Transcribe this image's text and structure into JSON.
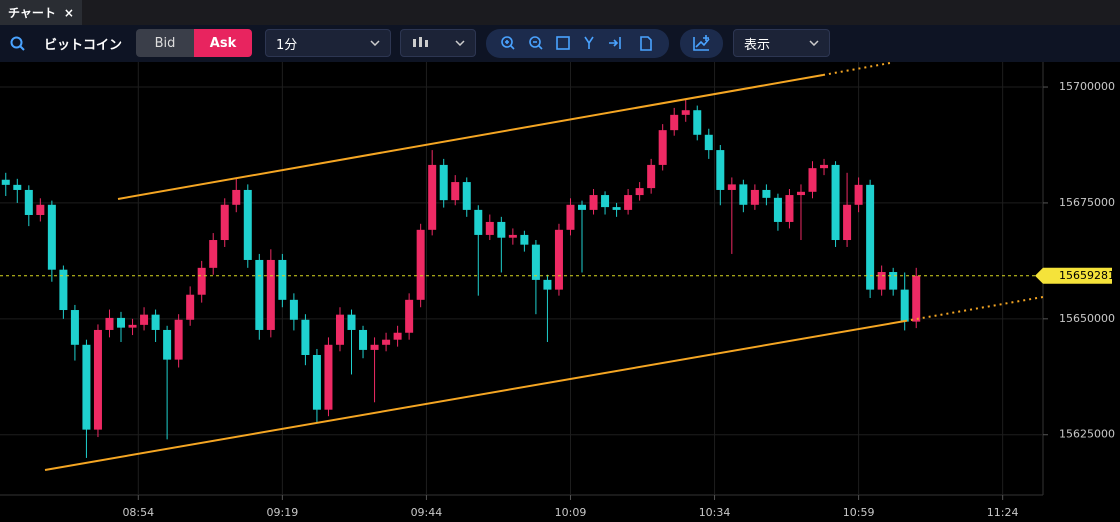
{
  "tab": {
    "title": "チャート",
    "close": "×"
  },
  "toolbar": {
    "symbol": "ビットコイン",
    "bid": "Bid",
    "ask": "Ask",
    "interval": "1分",
    "display": "表示"
  },
  "chart_data": {
    "type": "candlestick",
    "up_color": "#ee2a64",
    "down_color": "#1fd1cf",
    "grid": true,
    "xlim": [
      "08:30",
      "11:31"
    ],
    "xticks": [
      "08:54",
      "09:19",
      "09:44",
      "10:09",
      "10:34",
      "10:59",
      "11:24"
    ],
    "ylim": [
      15612000,
      15705400
    ],
    "yticks": [
      15700000,
      15675000,
      15650000,
      15625000
    ],
    "x": [
      "08:31",
      "08:33",
      "08:35",
      "08:37",
      "08:39",
      "08:41",
      "08:43",
      "08:45",
      "08:47",
      "08:49",
      "08:51",
      "08:53",
      "08:55",
      "08:57",
      "08:59",
      "09:01",
      "09:03",
      "09:05",
      "09:07",
      "09:09",
      "09:11",
      "09:13",
      "09:15",
      "09:17",
      "09:19",
      "09:21",
      "09:23",
      "09:25",
      "09:27",
      "09:29",
      "09:31",
      "09:33",
      "09:35",
      "09:37",
      "09:39",
      "09:41",
      "09:43",
      "09:45",
      "09:47",
      "09:49",
      "09:51",
      "09:53",
      "09:55",
      "09:57",
      "09:59",
      "10:01",
      "10:03",
      "10:05",
      "10:07",
      "10:09",
      "10:11",
      "10:13",
      "10:15",
      "10:17",
      "10:19",
      "10:21",
      "10:23",
      "10:25",
      "10:27",
      "10:29",
      "10:31",
      "10:33",
      "10:35",
      "10:37",
      "10:39",
      "10:41",
      "10:43",
      "10:45",
      "10:47",
      "10:49",
      "10:51",
      "10:53",
      "10:55",
      "10:57",
      "10:59",
      "11:01",
      "11:03",
      "11:05",
      "11:07",
      "11:09"
    ],
    "ohlc": [
      [
        15680000,
        15681500,
        15676500,
        15678900
      ],
      [
        15678900,
        15680200,
        15675000,
        15677800
      ],
      [
        15677800,
        15678800,
        15670000,
        15672400
      ],
      [
        15672400,
        15676000,
        15671000,
        15674600
      ],
      [
        15674600,
        15675500,
        15658000,
        15660600
      ],
      [
        15660600,
        15661500,
        15650000,
        15651900
      ],
      [
        15651900,
        15653000,
        15641000,
        15644400
      ],
      [
        15644400,
        15645500,
        15620000,
        15626100
      ],
      [
        15626100,
        15648800,
        15624500,
        15647600
      ],
      [
        15647600,
        15652000,
        15646000,
        15650200
      ],
      [
        15650200,
        15651500,
        15645000,
        15648100
      ],
      [
        15648100,
        15650000,
        15646500,
        15648700
      ],
      [
        15648700,
        15652500,
        15647500,
        15650900
      ],
      [
        15650900,
        15652000,
        15645000,
        15647600
      ],
      [
        15647600,
        15648500,
        15624000,
        15641200
      ],
      [
        15641200,
        15651000,
        15639500,
        15649800
      ],
      [
        15649800,
        15657000,
        15648500,
        15655200
      ],
      [
        15655200,
        15662500,
        15653500,
        15661000
      ],
      [
        15661000,
        15668500,
        15659500,
        15667000
      ],
      [
        15667000,
        15676000,
        15665500,
        15674600
      ],
      [
        15674600,
        15680400,
        15673000,
        15677800
      ],
      [
        15677800,
        15679000,
        15661000,
        15662700
      ],
      [
        15662700,
        15664000,
        15645500,
        15647600
      ],
      [
        15647600,
        15665000,
        15646000,
        15662700
      ],
      [
        15662700,
        15664000,
        15652500,
        15654100
      ],
      [
        15654100,
        15655500,
        15647500,
        15649800
      ],
      [
        15649800,
        15651000,
        15640000,
        15642200
      ],
      [
        15642200,
        15643500,
        15627600,
        15630400
      ],
      [
        15630400,
        15646000,
        15629000,
        15644400
      ],
      [
        15644400,
        15652500,
        15643000,
        15650900
      ],
      [
        15650900,
        15652000,
        15638000,
        15647600
      ],
      [
        15647600,
        15648500,
        15641500,
        15643300
      ],
      [
        15643300,
        15646000,
        15632000,
        15644400
      ],
      [
        15644400,
        15647000,
        15643000,
        15645500
      ],
      [
        15645500,
        15648500,
        15644000,
        15647000
      ],
      [
        15647000,
        15655500,
        15645500,
        15654100
      ],
      [
        15654100,
        15670500,
        15652500,
        15669200
      ],
      [
        15669200,
        15686400,
        15668000,
        15683200
      ],
      [
        15683200,
        15684500,
        15674000,
        15675600
      ],
      [
        15675600,
        15681000,
        15674500,
        15679500
      ],
      [
        15679500,
        15680500,
        15672000,
        15673500
      ],
      [
        15673500,
        15674500,
        15655000,
        15668100
      ],
      [
        15668100,
        15672500,
        15667000,
        15670900
      ],
      [
        15670900,
        15672000,
        15660000,
        15667500
      ],
      [
        15667500,
        15669500,
        15666000,
        15668100
      ],
      [
        15668100,
        15669000,
        15664500,
        15666000
      ],
      [
        15666000,
        15667000,
        15651000,
        15658400
      ],
      [
        15658400,
        15659500,
        15645000,
        15656300
      ],
      [
        15656300,
        15670500,
        15655000,
        15669200
      ],
      [
        15669200,
        15676000,
        15668000,
        15674600
      ],
      [
        15674600,
        15675500,
        15660000,
        15673500
      ],
      [
        15673500,
        15678000,
        15672500,
        15676700
      ],
      [
        15676700,
        15677500,
        15672500,
        15674100
      ],
      [
        15674100,
        15675000,
        15672000,
        15673500
      ],
      [
        15673500,
        15678000,
        15672500,
        15676700
      ],
      [
        15676700,
        15679500,
        15675500,
        15678200
      ],
      [
        15678200,
        15684500,
        15677000,
        15683200
      ],
      [
        15683200,
        15692000,
        15682000,
        15690700
      ],
      [
        15690700,
        15695500,
        15689500,
        15694000
      ],
      [
        15694000,
        15697200,
        15692500,
        15695000
      ],
      [
        15695000,
        15696000,
        15688500,
        15689700
      ],
      [
        15689700,
        15691000,
        15684500,
        15686400
      ],
      [
        15686400,
        15687500,
        15674500,
        15677800
      ],
      [
        15677800,
        15680500,
        15664000,
        15679000
      ],
      [
        15679000,
        15680000,
        15673000,
        15674600
      ],
      [
        15674600,
        15679000,
        15673500,
        15677800
      ],
      [
        15677800,
        15679000,
        15674500,
        15676100
      ],
      [
        15676100,
        15677000,
        15669000,
        15670900
      ],
      [
        15670900,
        15678000,
        15669500,
        15676700
      ],
      [
        15676700,
        15679000,
        15667000,
        15677400
      ],
      [
        15677400,
        15684000,
        15676000,
        15682500
      ],
      [
        15682500,
        15684500,
        15681000,
        15683200
      ],
      [
        15683200,
        15684000,
        15665500,
        15667000
      ],
      [
        15667000,
        15681500,
        15665500,
        15674600
      ],
      [
        15674600,
        15680500,
        15673000,
        15678900
      ],
      [
        15678900,
        15680000,
        15654500,
        15656300
      ],
      [
        15656300,
        15661500,
        15655000,
        15660100
      ],
      [
        15660100,
        15661000,
        15655000,
        15656300
      ],
      [
        15656300,
        15660000,
        15647500,
        15649400
      ],
      [
        15649400,
        15661000,
        15648000,
        15659281
      ]
    ]
  }
}
